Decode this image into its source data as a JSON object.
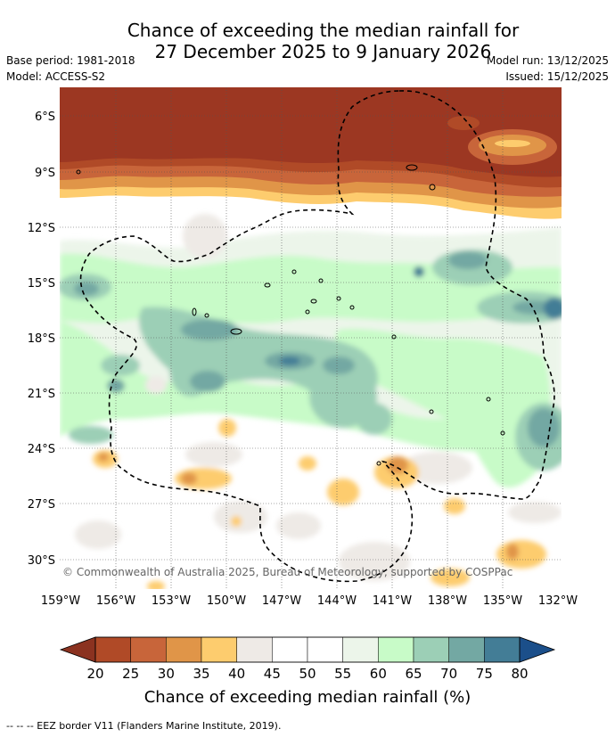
{
  "title": {
    "line1": "Chance of exceeding the median rainfall for",
    "line2": "27 December 2025 to 9 January 2026"
  },
  "meta": {
    "base_period": "Base period: 1981-2018",
    "model": "Model: ACCESS-S2",
    "model_run": "Model run: 13/12/2025",
    "issued": "Issued: 15/12/2025"
  },
  "map": {
    "lat_ticks": [
      "6°S",
      "9°S",
      "12°S",
      "15°S",
      "18°S",
      "21°S",
      "24°S",
      "27°S",
      "30°S"
    ],
    "lon_ticks": [
      "159°W",
      "156°W",
      "153°W",
      "150°W",
      "147°W",
      "144°W",
      "141°W",
      "138°W",
      "135°W",
      "132°W"
    ],
    "copyright": "© Commonwealth of Australia 2025, Bureau of Meteorology, supported by COSPPac"
  },
  "colorbar": {
    "labels": [
      "20",
      "25",
      "30",
      "35",
      "40",
      "45",
      "50",
      "55",
      "60",
      "65",
      "70",
      "75",
      "80"
    ],
    "colors": [
      "#b04a27",
      "#c8653a",
      "#e09548",
      "#fdcc6e",
      "#eeeae6",
      "#ffffff",
      "#ffffff",
      "#ecf5ea",
      "#c8fbc8",
      "#9ccfb6",
      "#73a8a3",
      "#437d96"
    ],
    "under_color": "#8b3220",
    "over_color": "#1b4f8a",
    "title": "Chance of exceeding median rainfall (%)"
  },
  "footnote": "--  --  -- EEZ border V11 (Flanders Marine Institute, 2019)."
}
